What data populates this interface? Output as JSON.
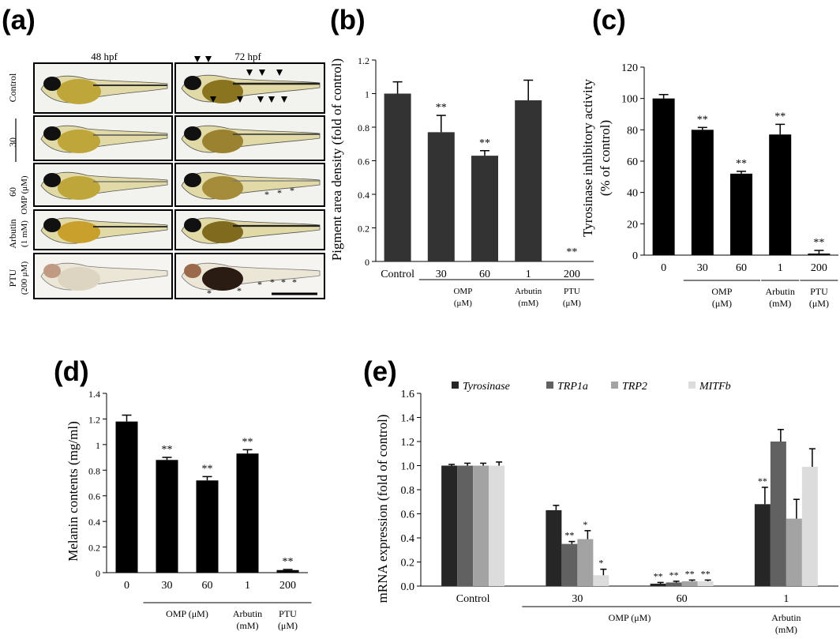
{
  "panel_a": {
    "letter": "(a)",
    "col_labels": [
      "48 hpf",
      "72 hpf"
    ],
    "row_labels": [
      "Control",
      "30",
      "60",
      "Arbutin",
      "(1 mM)",
      "PTU",
      "(200 μM)"
    ],
    "group_label": "OMP (μM)"
  },
  "chart_data": [
    {
      "panel": "(b)",
      "type": "bar",
      "ylabel": "Pigment area density (fold of control)",
      "ylim": [
        0,
        1.2
      ],
      "yticks": [
        "0",
        "0.2",
        "0.4",
        "0.6",
        "0.8",
        "1",
        "1.2"
      ],
      "categories": [
        "Control",
        "30",
        "60",
        "1",
        "200"
      ],
      "values": [
        1.0,
        0.77,
        0.63,
        0.96,
        0.0
      ],
      "errors": [
        0.07,
        0.1,
        0.03,
        0.12,
        0.0
      ],
      "significance": [
        "",
        "**",
        "**",
        "",
        "**"
      ],
      "groups": [
        {
          "label": "OMP",
          "unit": "(μM)",
          "from": 1,
          "to": 2
        },
        {
          "label": "Arbutin",
          "unit": "(mM)",
          "from": 3,
          "to": 3
        },
        {
          "label": "PTU",
          "unit": "(μM)",
          "from": 4,
          "to": 4
        }
      ],
      "color": "#333333"
    },
    {
      "panel": "(c)",
      "type": "bar",
      "ylabel": "Tyrosinase inhibitory activity",
      "ylabel2": "(% of control)",
      "ylim": [
        0,
        120
      ],
      "yticks": [
        "0",
        "20",
        "40",
        "60",
        "80",
        "100",
        "120"
      ],
      "categories": [
        "0",
        "30",
        "60",
        "1",
        "200"
      ],
      "values": [
        100,
        80,
        52,
        77,
        1
      ],
      "errors": [
        2.5,
        1.5,
        1.5,
        6.5,
        2
      ],
      "significance": [
        "",
        "**",
        "**",
        "**",
        "**"
      ],
      "groups": [
        {
          "label": "OMP",
          "unit": "(μM)",
          "from": 1,
          "to": 2
        },
        {
          "label": "Arbutin",
          "unit": "(mM)",
          "from": 3,
          "to": 3
        },
        {
          "label": "PTU",
          "unit": "(μM)",
          "from": 4,
          "to": 4
        }
      ],
      "color": "#000000"
    },
    {
      "panel": "(d)",
      "type": "bar",
      "ylabel": "Melanin contents (mg/ml)",
      "ylim": [
        0,
        1.4
      ],
      "yticks": [
        "0",
        "0.2",
        "0.4",
        "0.6",
        "0.8",
        "1",
        "1.2",
        "1.4"
      ],
      "categories": [
        "0",
        "30",
        "60",
        "1",
        "200"
      ],
      "values": [
        1.18,
        0.88,
        0.72,
        0.93,
        0.02
      ],
      "errors": [
        0.05,
        0.02,
        0.03,
        0.03,
        0.005
      ],
      "significance": [
        "",
        "**",
        "**",
        "**",
        "**"
      ],
      "groups": [
        {
          "label": "OMP (μM)",
          "unit": "",
          "from": 1,
          "to": 2
        },
        {
          "label": "Arbutin",
          "unit": "(mM)",
          "from": 3,
          "to": 3
        },
        {
          "label": "PTU",
          "unit": "(μM)",
          "from": 4,
          "to": 4
        }
      ],
      "color": "#000000"
    },
    {
      "panel": "(e)",
      "type": "bar",
      "ylabel": "mRNA expression (fold of control)",
      "ylim": [
        0,
        1.6
      ],
      "yticks": [
        "0.0",
        "0.2",
        "0.4",
        "0.6",
        "0.8",
        "1.0",
        "1.2",
        "1.4",
        "1.6"
      ],
      "categories": [
        "Control",
        "30",
        "60",
        "1"
      ],
      "series": [
        {
          "name": "Tyrosinase",
          "color": "#262626",
          "values": [
            1.0,
            0.63,
            0.02,
            0.68
          ],
          "errors": [
            0.01,
            0.04,
            0.01,
            0.14
          ],
          "significance": [
            "",
            "",
            "**",
            "**"
          ]
        },
        {
          "name": "TRP1a",
          "color": "#616161",
          "values": [
            1.0,
            0.35,
            0.03,
            1.2
          ],
          "errors": [
            0.02,
            0.02,
            0.01,
            0.1
          ],
          "significance": [
            "",
            "**",
            "**",
            ""
          ]
        },
        {
          "name": "TRP2",
          "color": "#a3a3a3",
          "values": [
            1.0,
            0.39,
            0.04,
            0.56
          ],
          "errors": [
            0.02,
            0.07,
            0.01,
            0.16
          ],
          "significance": [
            "",
            "*",
            "**",
            ""
          ]
        },
        {
          "name": "MITFb",
          "color": "#dcdcdc",
          "values": [
            1.0,
            0.09,
            0.04,
            0.99
          ],
          "errors": [
            0.03,
            0.05,
            0.01,
            0.15
          ],
          "significance": [
            "",
            "*",
            "**",
            ""
          ]
        }
      ],
      "groups": [
        {
          "label": "OMP (μM)",
          "unit": "",
          "from": 1,
          "to": 2
        },
        {
          "label": "Arbutin",
          "unit": "(mM)",
          "from": 3,
          "to": 3
        }
      ],
      "legend_position": "top"
    }
  ]
}
